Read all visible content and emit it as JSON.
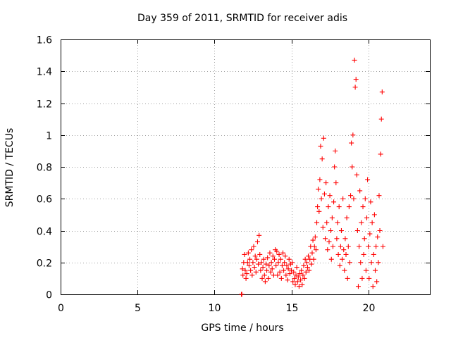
{
  "chart_data": {
    "type": "scatter",
    "title": "Day 359 of 2011, SRMTID for receiver adis",
    "xlabel": "GPS time / hours",
    "ylabel": "SRMTID / TECUs",
    "xlim": [
      0,
      24
    ],
    "ylim": [
      0,
      1.6
    ],
    "xticks": [
      0,
      5,
      10,
      15,
      20
    ],
    "xtick_labels": [
      "0",
      "5",
      "10",
      "15",
      "20"
    ],
    "yticks": [
      0,
      0.2,
      0.4,
      0.6,
      0.8,
      1.0,
      1.2,
      1.4,
      1.6
    ],
    "ytick_labels": [
      "0",
      "0.2",
      "0.4",
      "0.6",
      "0.8",
      "1",
      "1.2",
      "1.4",
      "1.6"
    ],
    "grid": true,
    "marker": "plus",
    "color": "#ff0000",
    "series": [
      {
        "name": "SRMTID",
        "points": [
          [
            11.75,
            0.0
          ],
          [
            11.78,
            0.0
          ],
          [
            11.82,
            0.16
          ],
          [
            11.85,
            0.12
          ],
          [
            11.9,
            0.2
          ],
          [
            11.95,
            0.25
          ],
          [
            12.0,
            0.15
          ],
          [
            12.05,
            0.1
          ],
          [
            12.1,
            0.13
          ],
          [
            12.15,
            0.2
          ],
          [
            12.2,
            0.26
          ],
          [
            12.25,
            0.18
          ],
          [
            12.3,
            0.22
          ],
          [
            12.35,
            0.15
          ],
          [
            12.4,
            0.28
          ],
          [
            12.45,
            0.12
          ],
          [
            12.5,
            0.2
          ],
          [
            12.55,
            0.3
          ],
          [
            12.6,
            0.17
          ],
          [
            12.65,
            0.24
          ],
          [
            12.7,
            0.14
          ],
          [
            12.75,
            0.22
          ],
          [
            12.8,
            0.33
          ],
          [
            12.85,
            0.19
          ],
          [
            12.9,
            0.37
          ],
          [
            12.95,
            0.25
          ],
          [
            13.0,
            0.15
          ],
          [
            13.05,
            0.2
          ],
          [
            13.1,
            0.1
          ],
          [
            13.15,
            0.17
          ],
          [
            13.2,
            0.22
          ],
          [
            13.25,
            0.12
          ],
          [
            13.3,
            0.08
          ],
          [
            13.35,
            0.19
          ],
          [
            13.4,
            0.15
          ],
          [
            13.45,
            0.23
          ],
          [
            13.5,
            0.1
          ],
          [
            13.55,
            0.18
          ],
          [
            13.6,
            0.26
          ],
          [
            13.65,
            0.14
          ],
          [
            13.7,
            0.2
          ],
          [
            13.75,
            0.16
          ],
          [
            13.8,
            0.24
          ],
          [
            13.85,
            0.12
          ],
          [
            13.9,
            0.22
          ],
          [
            13.95,
            0.28
          ],
          [
            14.0,
            0.18
          ],
          [
            14.05,
            0.27
          ],
          [
            14.1,
            0.12
          ],
          [
            14.15,
            0.2
          ],
          [
            14.2,
            0.25
          ],
          [
            14.25,
            0.14
          ],
          [
            14.3,
            0.22
          ],
          [
            14.35,
            0.1
          ],
          [
            14.4,
            0.18
          ],
          [
            14.45,
            0.26
          ],
          [
            14.5,
            0.15
          ],
          [
            14.55,
            0.2
          ],
          [
            14.6,
            0.24
          ],
          [
            14.65,
            0.12
          ],
          [
            14.7,
            0.18
          ],
          [
            14.75,
            0.09
          ],
          [
            14.8,
            0.16
          ],
          [
            14.85,
            0.22
          ],
          [
            14.9,
            0.13
          ],
          [
            14.95,
            0.19
          ],
          [
            15.0,
            0.15
          ],
          [
            15.05,
            0.2
          ],
          [
            15.1,
            0.08
          ],
          [
            15.15,
            0.14
          ],
          [
            15.2,
            0.1
          ],
          [
            15.25,
            0.06
          ],
          [
            15.3,
            0.12
          ],
          [
            15.35,
            0.17
          ],
          [
            15.4,
            0.08
          ],
          [
            15.45,
            0.11
          ],
          [
            15.5,
            0.05
          ],
          [
            15.55,
            0.13
          ],
          [
            15.6,
            0.09
          ],
          [
            15.65,
            0.15
          ],
          [
            15.7,
            0.06
          ],
          [
            15.75,
            0.12
          ],
          [
            15.8,
            0.18
          ],
          [
            15.85,
            0.1
          ],
          [
            15.9,
            0.22
          ],
          [
            15.95,
            0.14
          ],
          [
            16.0,
            0.2
          ],
          [
            16.05,
            0.17
          ],
          [
            16.1,
            0.24
          ],
          [
            16.15,
            0.15
          ],
          [
            16.2,
            0.22
          ],
          [
            16.25,
            0.3
          ],
          [
            16.3,
            0.19
          ],
          [
            16.35,
            0.26
          ],
          [
            16.4,
            0.34
          ],
          [
            16.45,
            0.22
          ],
          [
            16.5,
            0.3
          ],
          [
            16.55,
            0.36
          ],
          [
            16.6,
            0.28
          ],
          [
            16.65,
            0.45
          ],
          [
            16.7,
            0.55
          ],
          [
            16.75,
            0.66
          ],
          [
            16.8,
            0.52
          ],
          [
            16.85,
            0.72
          ],
          [
            16.9,
            0.93
          ],
          [
            16.95,
            0.6
          ],
          [
            17.0,
            0.85
          ],
          [
            17.05,
            0.42
          ],
          [
            17.1,
            0.98
          ],
          [
            17.15,
            0.63
          ],
          [
            17.2,
            0.35
          ],
          [
            17.25,
            0.7
          ],
          [
            17.3,
            0.45
          ],
          [
            17.35,
            0.28
          ],
          [
            17.4,
            0.55
          ],
          [
            17.45,
            0.33
          ],
          [
            17.5,
            0.62
          ],
          [
            17.55,
            0.4
          ],
          [
            17.6,
            0.22
          ],
          [
            17.65,
            0.48
          ],
          [
            17.7,
            0.3
          ],
          [
            17.75,
            0.58
          ],
          [
            17.8,
            0.8
          ],
          [
            17.85,
            0.9
          ],
          [
            17.9,
            0.7
          ],
          [
            17.95,
            0.35
          ],
          [
            18.0,
            0.45
          ],
          [
            18.05,
            0.25
          ],
          [
            18.1,
            0.55
          ],
          [
            18.15,
            0.18
          ],
          [
            18.2,
            0.3
          ],
          [
            18.25,
            0.4
          ],
          [
            18.3,
            0.22
          ],
          [
            18.35,
            0.6
          ],
          [
            18.4,
            0.28
          ],
          [
            18.45,
            0.15
          ],
          [
            18.5,
            0.35
          ],
          [
            18.55,
            0.25
          ],
          [
            18.6,
            0.48
          ],
          [
            18.65,
            0.1
          ],
          [
            18.7,
            0.3
          ],
          [
            18.75,
            0.55
          ],
          [
            18.8,
            0.2
          ],
          [
            18.85,
            0.62
          ],
          [
            18.9,
            0.95
          ],
          [
            18.95,
            0.8
          ],
          [
            19.0,
            1.0
          ],
          [
            19.05,
            0.6
          ],
          [
            19.1,
            1.47
          ],
          [
            19.15,
            1.3
          ],
          [
            19.2,
            1.35
          ],
          [
            19.25,
            0.75
          ],
          [
            19.3,
            0.4
          ],
          [
            19.35,
            0.05
          ],
          [
            19.4,
            0.3
          ],
          [
            19.45,
            0.65
          ],
          [
            19.5,
            0.2
          ],
          [
            19.55,
            0.45
          ],
          [
            19.6,
            0.1
          ],
          [
            19.65,
            0.55
          ],
          [
            19.7,
            0.25
          ],
          [
            19.75,
            0.35
          ],
          [
            19.8,
            0.6
          ],
          [
            19.85,
            0.15
          ],
          [
            19.9,
            0.48
          ],
          [
            19.95,
            0.72
          ],
          [
            20.0,
            0.3
          ],
          [
            20.05,
            0.1
          ],
          [
            20.1,
            0.38
          ],
          [
            20.15,
            0.58
          ],
          [
            20.2,
            0.2
          ],
          [
            20.25,
            0.45
          ],
          [
            20.3,
            0.05
          ],
          [
            20.35,
            0.25
          ],
          [
            20.4,
            0.5
          ],
          [
            20.45,
            0.15
          ],
          [
            20.5,
            0.3
          ],
          [
            20.55,
            0.08
          ],
          [
            20.6,
            0.36
          ],
          [
            20.65,
            0.2
          ],
          [
            20.7,
            0.62
          ],
          [
            20.75,
            0.4
          ],
          [
            20.8,
            0.88
          ],
          [
            20.85,
            1.1
          ],
          [
            20.9,
            1.27
          ],
          [
            20.95,
            0.3
          ]
        ]
      }
    ]
  }
}
